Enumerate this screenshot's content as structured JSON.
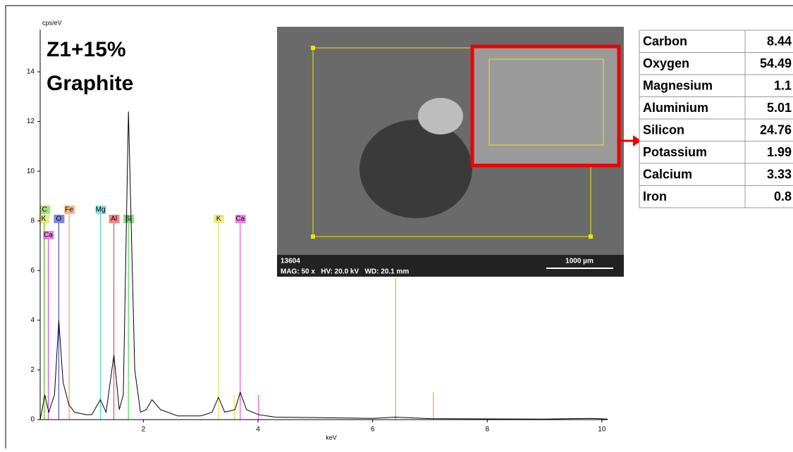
{
  "chart_data": {
    "type": "line",
    "heading": [
      "Z1+15%",
      "Graphite"
    ],
    "y_label": "cps/eV",
    "x_label": "keV",
    "xlim": [
      0.2,
      10.1
    ],
    "ylim": [
      0,
      15.7
    ],
    "xticks": [
      2,
      4,
      6,
      8,
      10
    ],
    "yticks": [
      0,
      2,
      4,
      6,
      8,
      10,
      12,
      14
    ],
    "series": [
      {
        "color": "#000000",
        "x": [
          0.2,
          0.25,
          0.28,
          0.35,
          0.45,
          0.525,
          0.6,
          0.7,
          0.8,
          1.0,
          1.1,
          1.25,
          1.35,
          1.486,
          1.58,
          1.65,
          1.74,
          1.85,
          1.95,
          2.05,
          2.15,
          2.3,
          2.6,
          3.0,
          3.2,
          3.31,
          3.42,
          3.6,
          3.69,
          3.8,
          4.01,
          4.3,
          5.0,
          6.0,
          6.4,
          7.0,
          8.0,
          9.0,
          9.8,
          10.1
        ],
        "values": [
          0,
          0.6,
          1.0,
          0.3,
          1.0,
          4.0,
          1.5,
          0.6,
          0.3,
          0.2,
          0.2,
          0.8,
          0.3,
          2.6,
          0.4,
          1.0,
          12.4,
          2.0,
          0.3,
          0.4,
          0.8,
          0.4,
          0.15,
          0.15,
          0.3,
          0.9,
          0.3,
          0.4,
          1.1,
          0.4,
          0.2,
          0.1,
          0.08,
          0.05,
          0.1,
          0.04,
          0.03,
          0.02,
          0.05,
          0.02
        ]
      }
    ],
    "element_lines": [
      {
        "label": "C",
        "energy": 0.277,
        "color": "#66cc33"
      },
      {
        "label": "K",
        "energy": 0.26,
        "color": "#dddd33"
      },
      {
        "label": "O",
        "energy": 0.525,
        "color": "#3333cc"
      },
      {
        "label": "Fe",
        "energy": 0.705,
        "color": "#ee8833"
      },
      {
        "label": "Mg",
        "energy": 1.253,
        "color": "#33cccc"
      },
      {
        "label": "Al",
        "energy": 1.486,
        "color": "#ee3333"
      },
      {
        "label": "Si",
        "energy": 1.739,
        "color": "#33cc33"
      },
      {
        "label": "K",
        "energy": 3.312,
        "color": "#dddd33"
      },
      {
        "label": "Ca",
        "energy": 3.69,
        "color": "#dd33dd"
      },
      {
        "label": "Ca",
        "energy": 0.341,
        "color": "#dd33dd"
      }
    ],
    "minor_lines": [
      {
        "energy": 6.4,
        "height": 5.7,
        "color": "#ee8833"
      },
      {
        "energy": 7.06,
        "height": 1.1,
        "color": "#ee8833"
      },
      {
        "energy": 4.01,
        "height": 1.0,
        "color": "#dd33dd"
      },
      {
        "energy": 3.59,
        "height": 1.0,
        "color": "#dddd33"
      }
    ]
  },
  "sem_image": {
    "id": "13604",
    "info": "MAG: 50 x   HV: 20.0 kV   WD: 20.1 mm",
    "scale": "1000 µm"
  },
  "table": {
    "rows": [
      [
        "Carbon",
        8.44
      ],
      [
        "Oxygen",
        54.49
      ],
      [
        "Magnesium",
        1.1
      ],
      [
        "Aluminium",
        5.01
      ],
      [
        "Silicon",
        24.76
      ],
      [
        "Potassium",
        1.99
      ],
      [
        "Calcium",
        3.33
      ],
      [
        "Iron",
        0.8
      ]
    ]
  }
}
